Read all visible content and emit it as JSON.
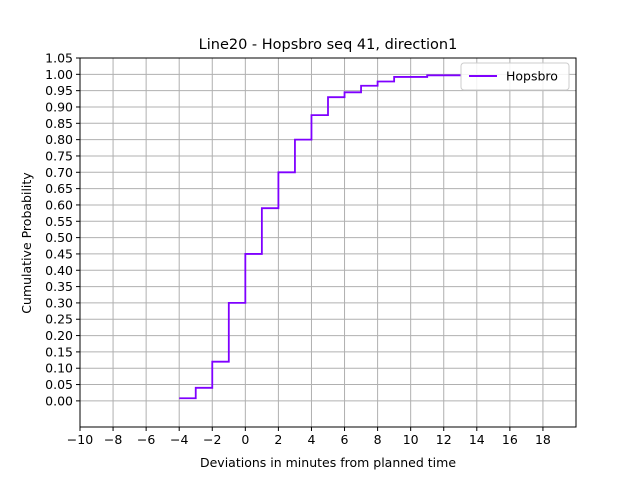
{
  "chart_data": {
    "type": "line",
    "step": true,
    "title": "Line20 - Hopsbro seq 41, direction1",
    "xlabel": "Deviations in minutes from planned time",
    "ylabel": "Cumulative Probability",
    "xlim": [
      -10,
      20
    ],
    "ylim": [
      -0.08,
      1.05
    ],
    "x_ticks": [
      -10,
      -8,
      -6,
      -4,
      -2,
      0,
      2,
      4,
      6,
      8,
      10,
      12,
      14,
      16,
      18
    ],
    "x_tick_labels": [
      "−10",
      "−8",
      "−6",
      "−4",
      "−2",
      "0",
      "2",
      "4",
      "6",
      "8",
      "10",
      "12",
      "14",
      "16",
      "18"
    ],
    "y_ticks": [
      0.0,
      0.05,
      0.1,
      0.15,
      0.2,
      0.25,
      0.3,
      0.35,
      0.4,
      0.45,
      0.5,
      0.55,
      0.6,
      0.65,
      0.7,
      0.75,
      0.8,
      0.85,
      0.9,
      0.95,
      1.0,
      1.05
    ],
    "y_tick_labels": [
      "0.00",
      "0.05",
      "0.10",
      "0.15",
      "0.20",
      "0.25",
      "0.30",
      "0.35",
      "0.40",
      "0.45",
      "0.50",
      "0.55",
      "0.60",
      "0.65",
      "0.70",
      "0.75",
      "0.80",
      "0.85",
      "0.90",
      "0.95",
      "1.00",
      "1.05"
    ],
    "grid": true,
    "legend_position": "top-right",
    "series": [
      {
        "name": "Hopsbro",
        "color": "#7f00ff",
        "x": [
          -4,
          -3,
          -2,
          -1,
          0,
          1,
          2,
          3,
          4,
          5,
          6,
          7,
          8,
          9,
          11,
          13
        ],
        "y": [
          0.008,
          0.04,
          0.12,
          0.3,
          0.45,
          0.59,
          0.7,
          0.8,
          0.875,
          0.93,
          0.945,
          0.965,
          0.978,
          0.992,
          0.997,
          1.0
        ]
      }
    ]
  }
}
